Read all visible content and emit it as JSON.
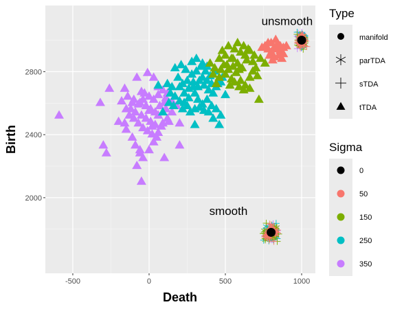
{
  "chart_data": {
    "type": "scatter",
    "xlabel": "Death",
    "ylabel": "Birth",
    "xlim": [
      -680,
      1090
    ],
    "ylim": [
      1520,
      3220
    ],
    "x_ticks": [
      -500,
      0,
      500,
      1000
    ],
    "x_tick_labels": [
      "-500",
      "0",
      "500",
      "1000"
    ],
    "y_ticks": [
      2000,
      2400,
      2800
    ],
    "y_tick_labels": [
      "2000",
      "2400",
      "2800"
    ],
    "grid": true,
    "legend_placement": "right",
    "annotations": [
      {
        "text": "unsmooth",
        "x": 905,
        "y": 3095
      },
      {
        "text": "smooth",
        "x": 520,
        "y": 1890
      }
    ],
    "legends": [
      {
        "title": "Type",
        "entries": [
          {
            "label": "manifold",
            "shape": "circle"
          },
          {
            "label": "parTDA",
            "shape": "asterisk"
          },
          {
            "label": "sTDA",
            "shape": "plus"
          },
          {
            "label": "tTDA",
            "shape": "triangle"
          }
        ]
      },
      {
        "title": "Sigma",
        "entries": [
          {
            "label": "0",
            "color": "#000000"
          },
          {
            "label": "50",
            "color": "#F8766D"
          },
          {
            "label": "150",
            "color": "#7CAE00"
          },
          {
            "label": "250",
            "color": "#00BFC4"
          },
          {
            "label": "350",
            "color": "#C77CFF"
          }
        ]
      }
    ],
    "series": [
      {
        "name": "350",
        "shape": "triangle",
        "color": "#C77CFF",
        "points": [
          [
            -590,
            2520
          ],
          [
            -320,
            2600
          ],
          [
            -280,
            2280
          ],
          [
            -300,
            2330
          ],
          [
            -260,
            2690
          ],
          [
            -160,
            2690
          ],
          [
            -110,
            2600
          ],
          [
            -80,
            2760
          ],
          [
            -50,
            2670
          ],
          [
            -10,
            2790
          ],
          [
            30,
            2760
          ],
          [
            60,
            2700
          ],
          [
            110,
            2630
          ],
          [
            150,
            2540
          ],
          [
            200,
            2470
          ],
          [
            -200,
            2480
          ],
          [
            -150,
            2430
          ],
          [
            -110,
            2380
          ],
          [
            -90,
            2330
          ],
          [
            -60,
            2280
          ],
          [
            -40,
            2250
          ],
          [
            0,
            2300
          ],
          [
            30,
            2350
          ],
          [
            60,
            2410
          ],
          [
            90,
            2470
          ],
          [
            120,
            2500
          ],
          [
            -150,
            2560
          ],
          [
            -130,
            2520
          ],
          [
            -100,
            2500
          ],
          [
            -70,
            2470
          ],
          [
            -40,
            2440
          ],
          [
            -10,
            2420
          ],
          [
            20,
            2400
          ],
          [
            50,
            2380
          ],
          [
            80,
            2450
          ],
          [
            110,
            2560
          ],
          [
            -180,
            2610
          ],
          [
            -140,
            2640
          ],
          [
            -100,
            2620
          ],
          [
            -60,
            2600
          ],
          [
            -20,
            2580
          ],
          [
            10,
            2560
          ],
          [
            40,
            2540
          ],
          [
            70,
            2580
          ],
          [
            100,
            2600
          ],
          [
            -30,
            2660
          ],
          [
            0,
            2640
          ],
          [
            30,
            2620
          ],
          [
            60,
            2650
          ],
          [
            90,
            2680
          ],
          [
            120,
            2660
          ],
          [
            -120,
            2560
          ],
          [
            -90,
            2540
          ],
          [
            -50,
            2520
          ],
          [
            -20,
            2500
          ],
          [
            10,
            2480
          ],
          [
            40,
            2460
          ],
          [
            -80,
            2200
          ],
          [
            -60,
            2300
          ],
          [
            100,
            2250
          ],
          [
            200,
            2330
          ],
          [
            -50,
            2100
          ],
          [
            20,
            2450
          ],
          [
            60,
            2520
          ],
          [
            -70,
            2590
          ],
          [
            -40,
            2620
          ],
          [
            150,
            2610
          ],
          [
            180,
            2580
          ],
          [
            130,
            2480
          ],
          [
            0,
            2550
          ],
          [
            -160,
            2470
          ]
        ]
      },
      {
        "name": "250",
        "shape": "triangle",
        "color": "#00BFC4",
        "points": [
          [
            130,
            2600
          ],
          [
            170,
            2640
          ],
          [
            200,
            2700
          ],
          [
            230,
            2660
          ],
          [
            260,
            2630
          ],
          [
            290,
            2700
          ],
          [
            330,
            2740
          ],
          [
            360,
            2710
          ],
          [
            390,
            2680
          ],
          [
            420,
            2660
          ],
          [
            450,
            2720
          ],
          [
            480,
            2760
          ],
          [
            500,
            2650
          ],
          [
            150,
            2700
          ],
          [
            190,
            2760
          ],
          [
            220,
            2720
          ],
          [
            250,
            2740
          ],
          [
            280,
            2780
          ],
          [
            310,
            2800
          ],
          [
            340,
            2830
          ],
          [
            370,
            2800
          ],
          [
            400,
            2770
          ],
          [
            430,
            2800
          ],
          [
            300,
            2660
          ],
          [
            320,
            2620
          ],
          [
            350,
            2590
          ],
          [
            380,
            2620
          ],
          [
            410,
            2580
          ],
          [
            440,
            2560
          ],
          [
            470,
            2520
          ],
          [
            250,
            2580
          ],
          [
            220,
            2560
          ],
          [
            270,
            2540
          ],
          [
            300,
            2560
          ],
          [
            330,
            2570
          ],
          [
            360,
            2550
          ],
          [
            390,
            2540
          ],
          [
            420,
            2500
          ],
          [
            460,
            2460
          ],
          [
            170,
            2820
          ],
          [
            210,
            2840
          ],
          [
            240,
            2810
          ],
          [
            280,
            2860
          ],
          [
            310,
            2880
          ],
          [
            350,
            2850
          ],
          [
            380,
            2830
          ],
          [
            140,
            2660
          ],
          [
            160,
            2580
          ],
          [
            200,
            2610
          ],
          [
            230,
            2600
          ],
          [
            260,
            2690
          ],
          [
            290,
            2730
          ],
          [
            320,
            2700
          ],
          [
            350,
            2760
          ],
          [
            380,
            2740
          ],
          [
            410,
            2720
          ],
          [
            440,
            2700
          ],
          [
            470,
            2730
          ],
          [
            120,
            2720
          ],
          [
            90,
            2540
          ],
          [
            60,
            2710
          ],
          [
            300,
            2460
          ]
        ]
      },
      {
        "name": "150",
        "shape": "triangle",
        "color": "#7CAE00",
        "points": [
          [
            400,
            2850
          ],
          [
            430,
            2820
          ],
          [
            460,
            2880
          ],
          [
            490,
            2840
          ],
          [
            520,
            2810
          ],
          [
            550,
            2880
          ],
          [
            580,
            2850
          ],
          [
            610,
            2820
          ],
          [
            640,
            2870
          ],
          [
            680,
            2800
          ],
          [
            720,
            2620
          ],
          [
            480,
            2930
          ],
          [
            520,
            2960
          ],
          [
            560,
            2940
          ],
          [
            600,
            2920
          ],
          [
            630,
            2900
          ],
          [
            660,
            2930
          ],
          [
            690,
            2900
          ],
          [
            420,
            2780
          ],
          [
            460,
            2760
          ],
          [
            500,
            2780
          ],
          [
            540,
            2750
          ],
          [
            570,
            2790
          ],
          [
            600,
            2740
          ],
          [
            630,
            2710
          ],
          [
            660,
            2760
          ],
          [
            700,
            2820
          ],
          [
            730,
            2880
          ],
          [
            760,
            2850
          ],
          [
            500,
            2900
          ],
          [
            540,
            2880
          ],
          [
            580,
            2980
          ],
          [
            620,
            2960
          ],
          [
            650,
            2940
          ],
          [
            680,
            2860
          ],
          [
            710,
            2770
          ],
          [
            620,
            2680
          ],
          [
            660,
            2690
          ],
          [
            590,
            2700
          ],
          [
            560,
            2730
          ],
          [
            530,
            2710
          ],
          [
            440,
            2720
          ],
          [
            470,
            2810
          ],
          [
            510,
            2840
          ],
          [
            550,
            2830
          ],
          [
            590,
            2810
          ]
        ]
      },
      {
        "name": "50",
        "shape": "triangle",
        "color": "#F8766D",
        "points": [
          [
            740,
            2950
          ],
          [
            760,
            2960
          ],
          [
            780,
            2940
          ],
          [
            800,
            2920
          ],
          [
            820,
            2950
          ],
          [
            840,
            2970
          ],
          [
            860,
            2930
          ],
          [
            880,
            2950
          ],
          [
            800,
            2980
          ],
          [
            830,
            3000
          ],
          [
            850,
            2900
          ],
          [
            870,
            2880
          ],
          [
            810,
            2870
          ],
          [
            790,
            2900
          ],
          [
            840,
            2940
          ],
          [
            820,
            2890
          ],
          [
            860,
            2960
          ],
          [
            780,
            2980
          ],
          [
            880,
            2910
          ],
          [
            900,
            2960
          ]
        ]
      },
      {
        "name": "0",
        "shape": "circle",
        "color": "#000000",
        "points": [
          [
            1000,
            3000
          ],
          [
            800,
            1780
          ]
        ]
      }
    ],
    "clusters": [
      {
        "center": [
          1000,
          3000
        ],
        "spread": [
          35,
          60
        ]
      },
      {
        "center": [
          800,
          1780
        ],
        "spread": [
          60,
          65
        ]
      }
    ],
    "cluster_colors": [
      "#C77CFF",
      "#00BFC4",
      "#7CAE00",
      "#F8766D"
    ]
  }
}
